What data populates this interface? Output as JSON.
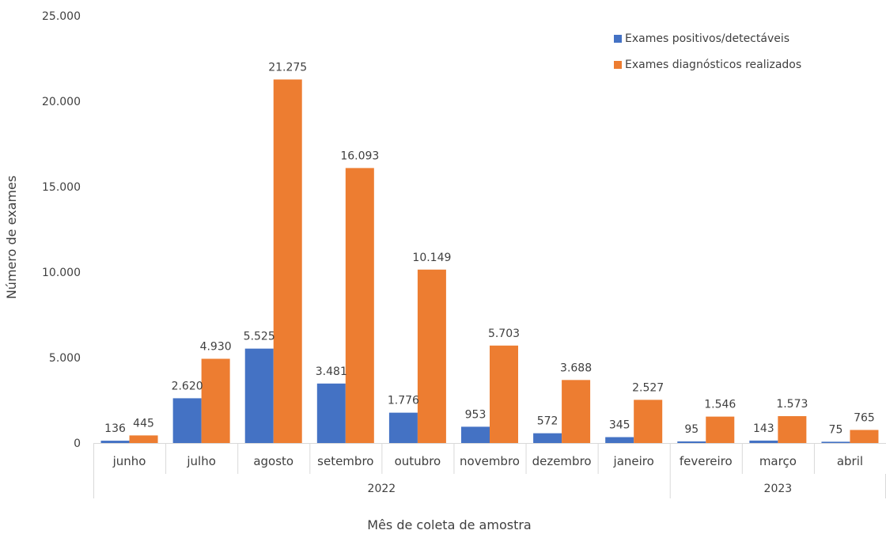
{
  "chart_data": {
    "type": "bar",
    "xlabel": "Mês de coleta de amostra",
    "ylabel": "Número de exames",
    "ylim": [
      0,
      25000
    ],
    "yticks": [
      "0",
      "5.000",
      "10.000",
      "15.000",
      "20.000",
      "25.000"
    ],
    "ytick_values": [
      0,
      5000,
      10000,
      15000,
      20000,
      25000
    ],
    "grid": false,
    "legend_position": "top-right",
    "categories": [
      "junho",
      "julho",
      "agosto",
      "setembro",
      "outubro",
      "novembro",
      "dezembro",
      "janeiro",
      "fevereiro",
      "março",
      "abril"
    ],
    "groups": [
      {
        "label": "2022",
        "count": 8
      },
      {
        "label": "2023",
        "count": 3
      }
    ],
    "series": [
      {
        "name": "Exames positivos/detectáveis",
        "color": "#4472C4",
        "values": [
          136,
          2620,
          5525,
          3481,
          1776,
          953,
          572,
          345,
          95,
          143,
          75
        ],
        "labels": [
          "136",
          "2.620",
          "5.525",
          "3.481",
          "1.776",
          "953",
          "572",
          "345",
          "95",
          "143",
          "75"
        ]
      },
      {
        "name": "Exames diagnósticos realizados",
        "color": "#ED7D31",
        "values": [
          445,
          4930,
          21275,
          16093,
          10149,
          5703,
          3688,
          2527,
          1546,
          1573,
          765
        ],
        "labels": [
          "445",
          "4.930",
          "21.275",
          "16.093",
          "10.149",
          "5.703",
          "3.688",
          "2.527",
          "1.546",
          "1.573",
          "765"
        ]
      }
    ]
  }
}
